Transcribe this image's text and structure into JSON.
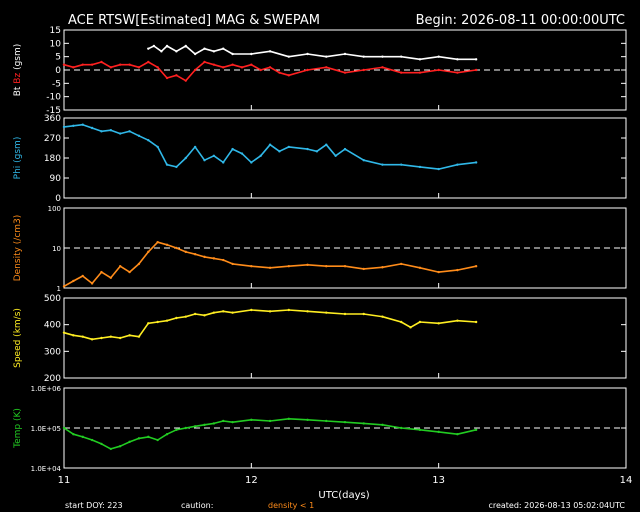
{
  "title": "ACE RTSW[Estimated] MAG & SWEPAM",
  "begin_label": "Begin: 2026-08-11 00:00:00UTC",
  "footer": {
    "start_doy": "start DOY: 223",
    "caution": "caution:",
    "density_note": "density < 1",
    "created": "created: 2026-08-13 05:02:04UTC"
  },
  "colors": {
    "background": "#000000",
    "axis": "#ffffff",
    "bt": "#ffffff",
    "bz": "#ff2020",
    "phi": "#30b8e8",
    "density": "#ff8c1a",
    "speed": "#ffee22",
    "temp": "#22cc22",
    "caution_density": "#ff8c1a"
  },
  "chart_data": [
    {
      "type": "line",
      "panel": "mag",
      "ylabel_parts": [
        {
          "text": "Bt",
          "color": "#ffffff"
        },
        {
          "text": "Bz",
          "color": "#ff2020"
        },
        {
          "text": "(gsm)",
          "color": "#ffffff"
        }
      ],
      "ylim": [
        -15,
        15
      ],
      "yticks": [
        15,
        10,
        5,
        0,
        -5,
        -10,
        -15
      ],
      "ytick_labels": [
        "15",
        "10",
        "5",
        "0",
        "-5",
        "-10",
        "-15"
      ],
      "reference_lines": [
        0
      ],
      "series": [
        {
          "name": "Bt",
          "color": "#ffffff",
          "x": [
            11.45,
            11.48,
            11.52,
            11.55,
            11.6,
            11.65,
            11.7,
            11.75,
            11.8,
            11.85,
            11.9,
            12.0,
            12.1,
            12.2,
            12.3,
            12.4,
            12.5,
            12.6,
            12.7,
            12.8,
            12.9,
            13.0,
            13.1,
            13.2
          ],
          "y": [
            8,
            9,
            7,
            9,
            7,
            9,
            6,
            8,
            7,
            8,
            6,
            6,
            7,
            5,
            6,
            5,
            6,
            5,
            5,
            5,
            4,
            5,
            4,
            4
          ]
        },
        {
          "name": "Bz",
          "color": "#ff2020",
          "x": [
            11.0,
            11.05,
            11.1,
            11.15,
            11.2,
            11.25,
            11.3,
            11.35,
            11.4,
            11.45,
            11.5,
            11.55,
            11.6,
            11.65,
            11.7,
            11.75,
            11.8,
            11.85,
            11.9,
            11.95,
            12.0,
            12.05,
            12.1,
            12.15,
            12.2,
            12.3,
            12.4,
            12.5,
            12.6,
            12.7,
            12.8,
            12.9,
            13.0,
            13.1,
            13.2
          ],
          "y": [
            2,
            1,
            2,
            2,
            3,
            1,
            2,
            2,
            1,
            3,
            1,
            -3,
            -2,
            -4,
            0,
            3,
            2,
            1,
            2,
            1,
            2,
            0,
            1,
            -1,
            -2,
            0,
            1,
            -1,
            0,
            1,
            -1,
            -1,
            0,
            -1,
            0
          ]
        }
      ]
    },
    {
      "type": "line",
      "panel": "phi",
      "ylabel": "Phi (gsm)",
      "ylim": [
        0,
        360
      ],
      "yticks": [
        360,
        270,
        180,
        90,
        0
      ],
      "ytick_labels": [
        "360",
        "270",
        "180",
        "90",
        "0"
      ],
      "series": [
        {
          "name": "Phi",
          "color": "#30b8e8",
          "x": [
            11.0,
            11.05,
            11.1,
            11.15,
            11.2,
            11.25,
            11.3,
            11.35,
            11.4,
            11.45,
            11.5,
            11.55,
            11.6,
            11.65,
            11.7,
            11.75,
            11.8,
            11.85,
            11.9,
            11.95,
            12.0,
            12.05,
            12.1,
            12.15,
            12.2,
            12.3,
            12.35,
            12.4,
            12.45,
            12.5,
            12.6,
            12.7,
            12.8,
            12.9,
            13.0,
            13.1,
            13.2
          ],
          "y": [
            320,
            325,
            330,
            315,
            300,
            305,
            290,
            300,
            280,
            260,
            230,
            150,
            140,
            180,
            230,
            170,
            190,
            160,
            220,
            200,
            160,
            190,
            240,
            210,
            230,
            220,
            210,
            240,
            190,
            220,
            170,
            150,
            150,
            140,
            130,
            150,
            160
          ]
        }
      ]
    },
    {
      "type": "line",
      "panel": "density",
      "ylabel": "Density (/cm3)",
      "scale": "log",
      "ylim": [
        1,
        100
      ],
      "yticks": [
        100,
        10,
        1
      ],
      "ytick_labels": [
        "100",
        "10",
        "1"
      ],
      "reference_lines": [
        10
      ],
      "series": [
        {
          "name": "Density",
          "color": "#ff8c1a",
          "x": [
            11.0,
            11.05,
            11.1,
            11.15,
            11.2,
            11.25,
            11.3,
            11.35,
            11.4,
            11.45,
            11.5,
            11.55,
            11.6,
            11.65,
            11.7,
            11.75,
            11.8,
            11.85,
            11.9,
            12.0,
            12.1,
            12.2,
            12.3,
            12.4,
            12.5,
            12.6,
            12.7,
            12.8,
            12.9,
            13.0,
            13.1,
            13.2
          ],
          "y": [
            1.1,
            1.5,
            2.0,
            1.3,
            2.5,
            1.8,
            3.5,
            2.5,
            4.0,
            8,
            14,
            12,
            10,
            8,
            7,
            6,
            5.5,
            5,
            4,
            3.5,
            3.2,
            3.5,
            3.8,
            3.5,
            3.5,
            3.0,
            3.3,
            4.0,
            3.2,
            2.5,
            2.8,
            3.5
          ]
        }
      ]
    },
    {
      "type": "line",
      "panel": "speed",
      "ylabel": "Speed (km/s)",
      "ylim": [
        200,
        500
      ],
      "yticks": [
        500,
        400,
        300,
        200
      ],
      "ytick_labels": [
        "500",
        "400",
        "300",
        "200"
      ],
      "series": [
        {
          "name": "Speed",
          "color": "#ffee22",
          "x": [
            11.0,
            11.05,
            11.1,
            11.15,
            11.2,
            11.25,
            11.3,
            11.35,
            11.4,
            11.45,
            11.5,
            11.55,
            11.6,
            11.65,
            11.7,
            11.75,
            11.8,
            11.85,
            11.9,
            12.0,
            12.1,
            12.2,
            12.3,
            12.4,
            12.5,
            12.6,
            12.7,
            12.8,
            12.85,
            12.9,
            13.0,
            13.1,
            13.2
          ],
          "y": [
            370,
            360,
            355,
            345,
            350,
            355,
            350,
            360,
            355,
            405,
            410,
            415,
            425,
            430,
            440,
            435,
            445,
            450,
            445,
            455,
            450,
            455,
            450,
            445,
            440,
            440,
            430,
            410,
            390,
            410,
            405,
            415,
            410
          ]
        }
      ]
    },
    {
      "type": "line",
      "panel": "temp",
      "ylabel": "Temp (K)",
      "scale": "log",
      "ylim": [
        10000,
        1000000
      ],
      "yticks": [
        1000000,
        100000,
        10000
      ],
      "ytick_labels": [
        "1.0E+06",
        "1.0E+05",
        "1.0E+04"
      ],
      "reference_lines": [
        100000
      ],
      "series": [
        {
          "name": "Temp",
          "color": "#22cc22",
          "x": [
            11.0,
            11.05,
            11.1,
            11.15,
            11.2,
            11.25,
            11.3,
            11.35,
            11.4,
            11.45,
            11.5,
            11.55,
            11.6,
            11.65,
            11.7,
            11.75,
            11.8,
            11.85,
            11.9,
            12.0,
            12.1,
            12.2,
            12.3,
            12.4,
            12.5,
            12.6,
            12.7,
            12.8,
            12.9,
            13.0,
            13.1,
            13.2
          ],
          "y": [
            100000,
            70000,
            60000,
            50000,
            40000,
            30000,
            35000,
            45000,
            55000,
            60000,
            50000,
            70000,
            90000,
            100000,
            110000,
            120000,
            130000,
            150000,
            140000,
            160000,
            150000,
            170000,
            160000,
            150000,
            140000,
            130000,
            120000,
            100000,
            90000,
            80000,
            70000,
            90000
          ]
        }
      ]
    }
  ],
  "x_axis": {
    "xlim": [
      11,
      14
    ],
    "ticks": [
      11,
      12,
      13,
      14
    ],
    "tick_labels": [
      "11",
      "12",
      "13",
      "14"
    ],
    "label": "UTC(days)"
  }
}
